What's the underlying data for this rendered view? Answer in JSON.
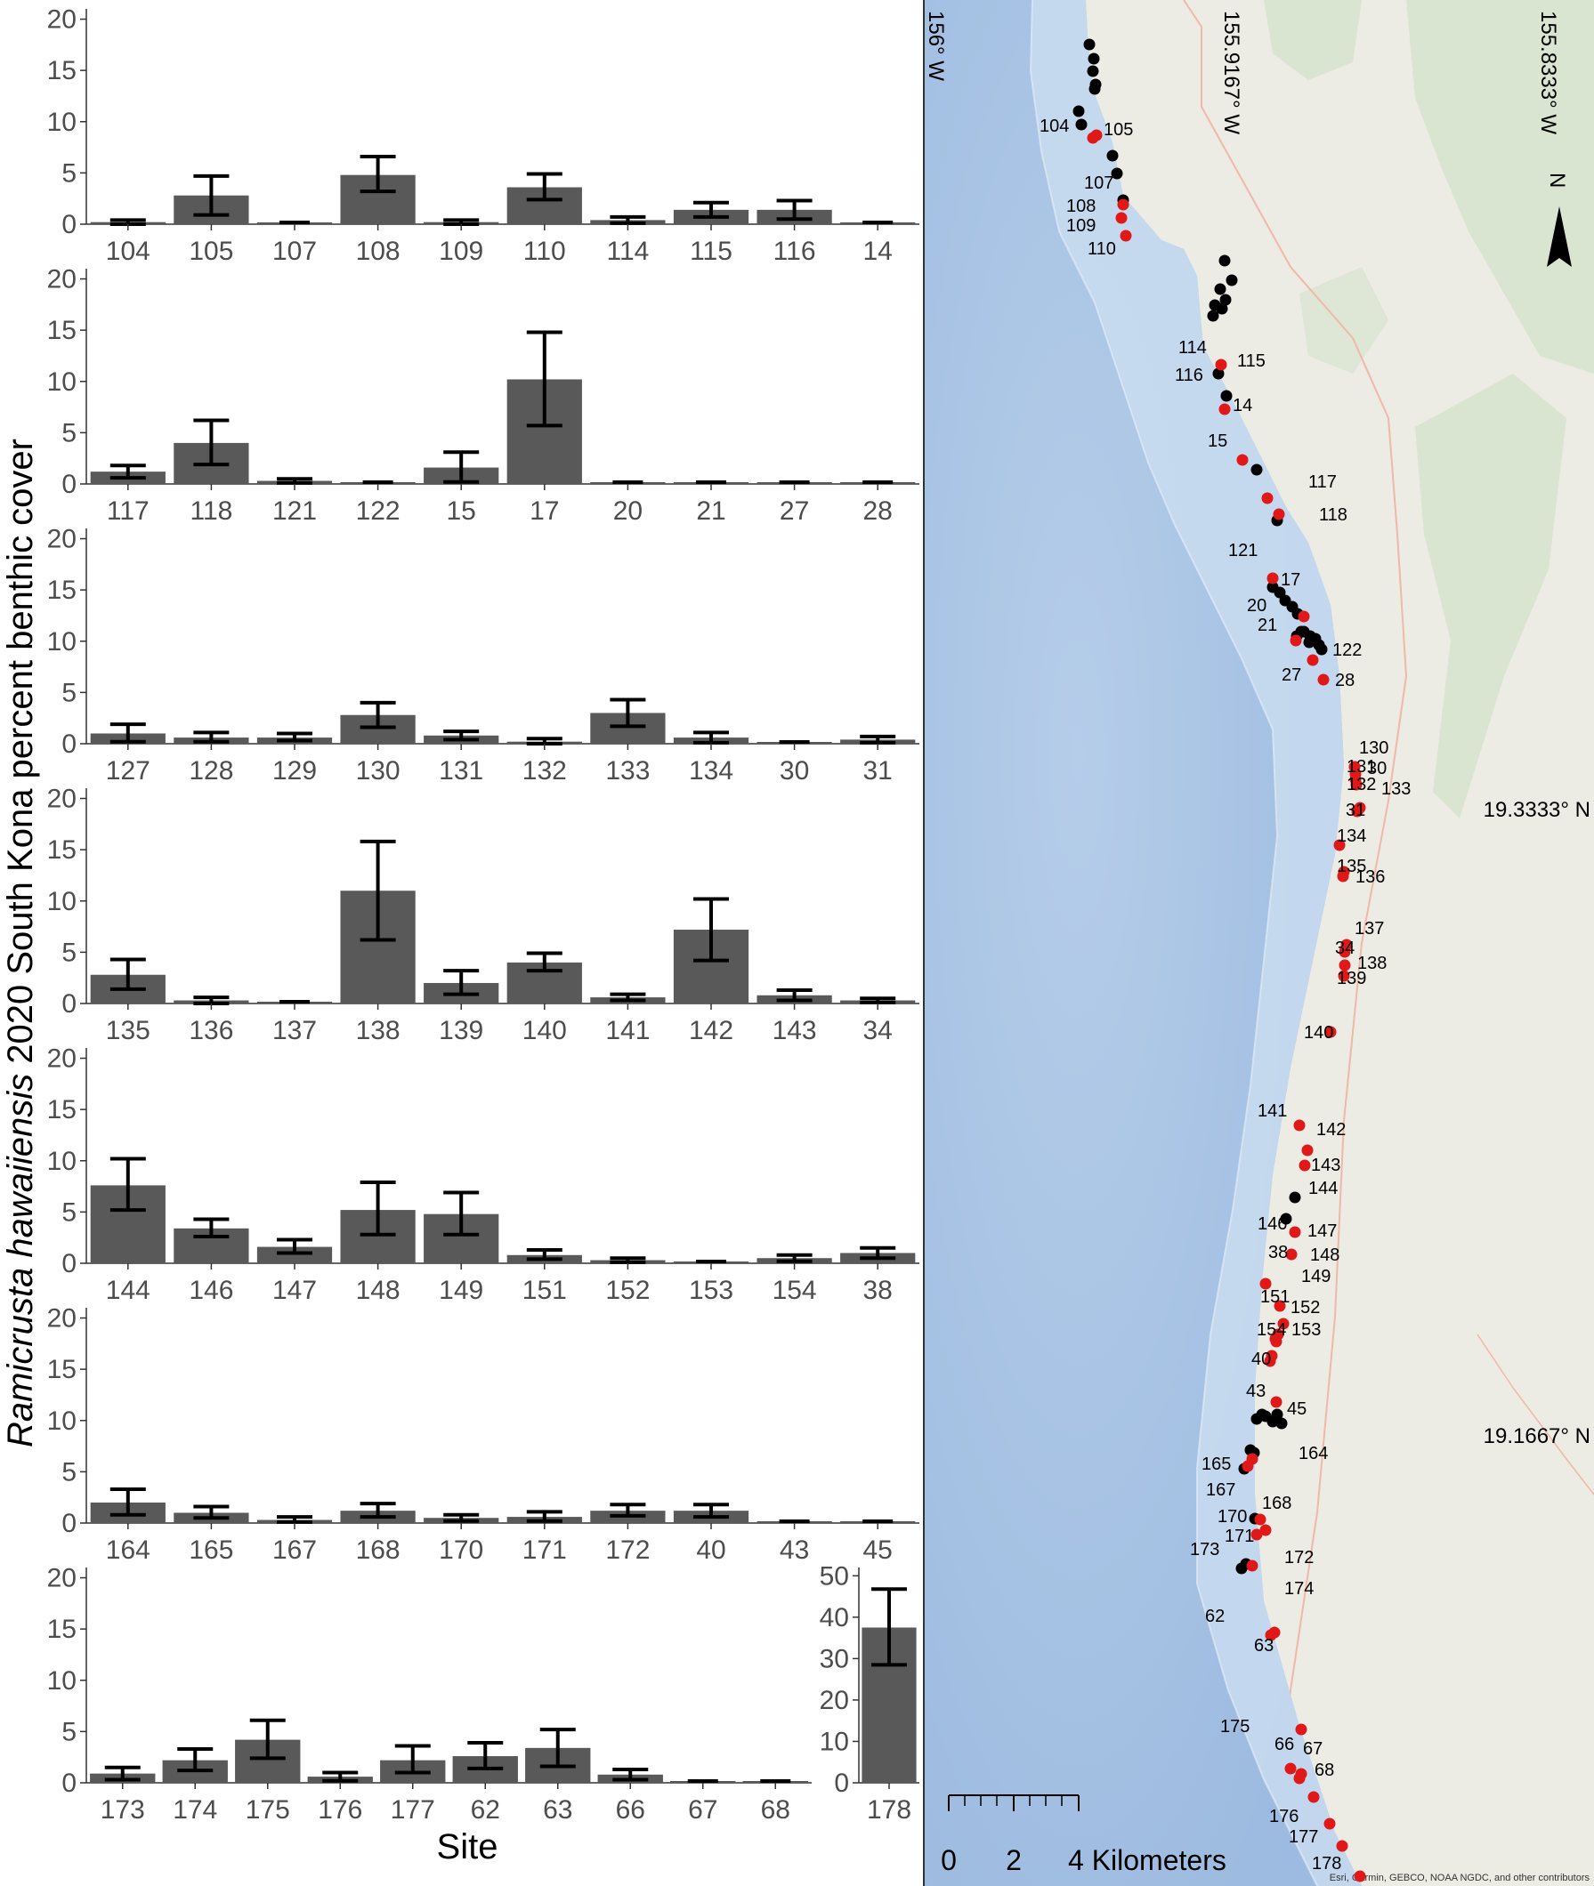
{
  "figure": {
    "y_axis_title_italic": "Ramicrusta hawaiiensis",
    "y_axis_title_rest": " 2020 South Kona percent benthic cover",
    "x_axis_title": "Site"
  },
  "chart_data": [
    {
      "type": "bar",
      "categories": [
        "104",
        "105",
        "107",
        "108",
        "109",
        "110",
        "114",
        "115",
        "116",
        "14"
      ],
      "values": [
        0.2,
        2.8,
        0,
        4.8,
        0.2,
        3.6,
        0.4,
        1.4,
        1.4,
        0
      ],
      "err_low": [
        0.0,
        0.9,
        0,
        3.2,
        0.0,
        2.4,
        0.1,
        0.7,
        0.5,
        0
      ],
      "err_high": [
        0.4,
        4.7,
        0,
        6.6,
        0.4,
        4.9,
        0.7,
        2.1,
        2.3,
        0
      ],
      "ylim": [
        0,
        21
      ],
      "yticks": [
        0,
        5,
        10,
        15,
        20
      ],
      "xlabel": "",
      "ylabel": ""
    },
    {
      "type": "bar",
      "categories": [
        "117",
        "118",
        "121",
        "122",
        "15",
        "17",
        "20",
        "21",
        "27",
        "28"
      ],
      "values": [
        1.2,
        4.0,
        0.3,
        0,
        1.6,
        10.2,
        0,
        0,
        0,
        0
      ],
      "err_low": [
        0.6,
        1.9,
        0.1,
        0,
        0.2,
        5.7,
        0,
        0,
        0,
        0
      ],
      "err_high": [
        1.8,
        6.2,
        0.5,
        0,
        3.1,
        14.8,
        0,
        0,
        0,
        0
      ],
      "ylim": [
        0,
        21
      ],
      "yticks": [
        0,
        5,
        10,
        15,
        20
      ],
      "xlabel": "",
      "ylabel": ""
    },
    {
      "type": "bar",
      "categories": [
        "127",
        "128",
        "129",
        "130",
        "131",
        "132",
        "133",
        "134",
        "30",
        "31"
      ],
      "values": [
        1.0,
        0.6,
        0.6,
        2.8,
        0.8,
        0.2,
        3.0,
        0.6,
        0,
        0.4
      ],
      "err_low": [
        0.2,
        0.2,
        0.3,
        1.6,
        0.4,
        0.0,
        1.7,
        0.1,
        0,
        0.1
      ],
      "err_high": [
        1.9,
        1.1,
        1.0,
        4.0,
        1.2,
        0.5,
        4.3,
        1.1,
        0,
        0.7
      ],
      "ylim": [
        0,
        21
      ],
      "yticks": [
        0,
        5,
        10,
        15,
        20
      ],
      "xlabel": "",
      "ylabel": ""
    },
    {
      "type": "bar",
      "categories": [
        "135",
        "136",
        "137",
        "138",
        "139",
        "140",
        "141",
        "142",
        "143",
        "34"
      ],
      "values": [
        2.8,
        0.3,
        0,
        11.0,
        2.0,
        4.0,
        0.6,
        7.2,
        0.8,
        0.3
      ],
      "err_low": [
        1.4,
        0.0,
        0,
        6.2,
        0.9,
        3.2,
        0.3,
        4.2,
        0.3,
        0.1
      ],
      "err_high": [
        4.3,
        0.6,
        0,
        15.8,
        3.2,
        4.9,
        0.9,
        10.2,
        1.3,
        0.5
      ],
      "ylim": [
        0,
        21
      ],
      "yticks": [
        0,
        5,
        10,
        15,
        20
      ],
      "xlabel": "",
      "ylabel": ""
    },
    {
      "type": "bar",
      "categories": [
        "144",
        "146",
        "147",
        "148",
        "149",
        "151",
        "152",
        "153",
        "154",
        "38"
      ],
      "values": [
        7.6,
        3.4,
        1.6,
        5.2,
        4.8,
        0.8,
        0.3,
        0,
        0.5,
        1.0
      ],
      "err_low": [
        5.2,
        2.6,
        1.0,
        2.8,
        2.8,
        0.4,
        0.1,
        0,
        0.2,
        0.5
      ],
      "err_high": [
        10.2,
        4.3,
        2.3,
        7.9,
        6.9,
        1.3,
        0.5,
        0,
        0.8,
        1.5
      ],
      "ylim": [
        0,
        21
      ],
      "yticks": [
        0,
        5,
        10,
        15,
        20
      ],
      "xlabel": "",
      "ylabel": ""
    },
    {
      "type": "bar",
      "categories": [
        "164",
        "165",
        "167",
        "168",
        "170",
        "171",
        "172",
        "40",
        "43",
        "45"
      ],
      "values": [
        2.0,
        1.0,
        0.3,
        1.2,
        0.5,
        0.6,
        1.2,
        1.2,
        0,
        0
      ],
      "err_low": [
        0.8,
        0.5,
        0.1,
        0.6,
        0.2,
        0.2,
        0.7,
        0.6,
        0,
        0
      ],
      "err_high": [
        3.3,
        1.6,
        0.6,
        1.9,
        0.8,
        1.1,
        1.8,
        1.8,
        0,
        0
      ],
      "ylim": [
        0,
        21
      ],
      "yticks": [
        0,
        5,
        10,
        15,
        20
      ],
      "xlabel": "",
      "ylabel": ""
    },
    {
      "type": "bar",
      "categories": [
        "173",
        "174",
        "175",
        "176",
        "177",
        "62",
        "63",
        "66",
        "67",
        "68"
      ],
      "values": [
        0.9,
        2.2,
        4.2,
        0.6,
        2.2,
        2.6,
        3.4,
        0.8,
        0,
        0
      ],
      "err_low": [
        0.3,
        1.2,
        2.4,
        0.2,
        1.0,
        1.4,
        1.6,
        0.3,
        0,
        0
      ],
      "err_high": [
        1.5,
        3.3,
        6.1,
        1.0,
        3.6,
        3.9,
        5.2,
        1.3,
        0,
        0
      ],
      "ylim": [
        0,
        21
      ],
      "yticks": [
        0,
        5,
        10,
        15,
        20
      ],
      "xlabel": "Site",
      "ylabel": ""
    },
    {
      "type": "bar",
      "categories": [
        "178"
      ],
      "values": [
        37.5
      ],
      "err_low": [
        28.5
      ],
      "err_high": [
        46.8
      ],
      "ylim": [
        0,
        52
      ],
      "yticks": [
        0,
        10,
        20,
        30,
        40,
        50
      ],
      "xlabel": "",
      "ylabel": ""
    }
  ],
  "map": {
    "lon_labels": [
      "156° W",
      "155.9167° W",
      "155.8333° W"
    ],
    "lat_labels": [
      "19.3333° N",
      "19.1667° N"
    ],
    "north_label": "N",
    "scale_labels": [
      "0",
      "2",
      "4 Kilometers"
    ],
    "credit": "Esri, Garmin, GEBCO, NOAA NGDC, and other contributors",
    "colors": {
      "ocean_deep": "#a6c3e3",
      "ocean_shelf": "#c9dcf0",
      "land": "#ecebe4",
      "vegetation": "#d6e3cc",
      "road": "#f0b8a8",
      "site_red": "#e01818",
      "site_black": "#000000"
    },
    "site_labels": [
      "104",
      "105",
      "107",
      "108",
      "109",
      "110",
      "114",
      "115",
      "116",
      "14",
      "15",
      "117",
      "118",
      "121",
      "17",
      "20",
      "21",
      "122",
      "27",
      "28",
      "130",
      "131",
      "30",
      "132",
      "133",
      "31",
      "134",
      "135",
      "136",
      "137",
      "34",
      "138",
      "139",
      "140",
      "141",
      "142",
      "143",
      "144",
      "146",
      "147",
      "38",
      "148",
      "149",
      "151",
      "152",
      "154",
      "153",
      "40",
      "43",
      "45",
      "164",
      "165",
      "167",
      "168",
      "170",
      "171",
      "173",
      "172",
      "174",
      "62",
      "63",
      "175",
      "66",
      "67",
      "68",
      "176",
      "177",
      "178"
    ]
  }
}
